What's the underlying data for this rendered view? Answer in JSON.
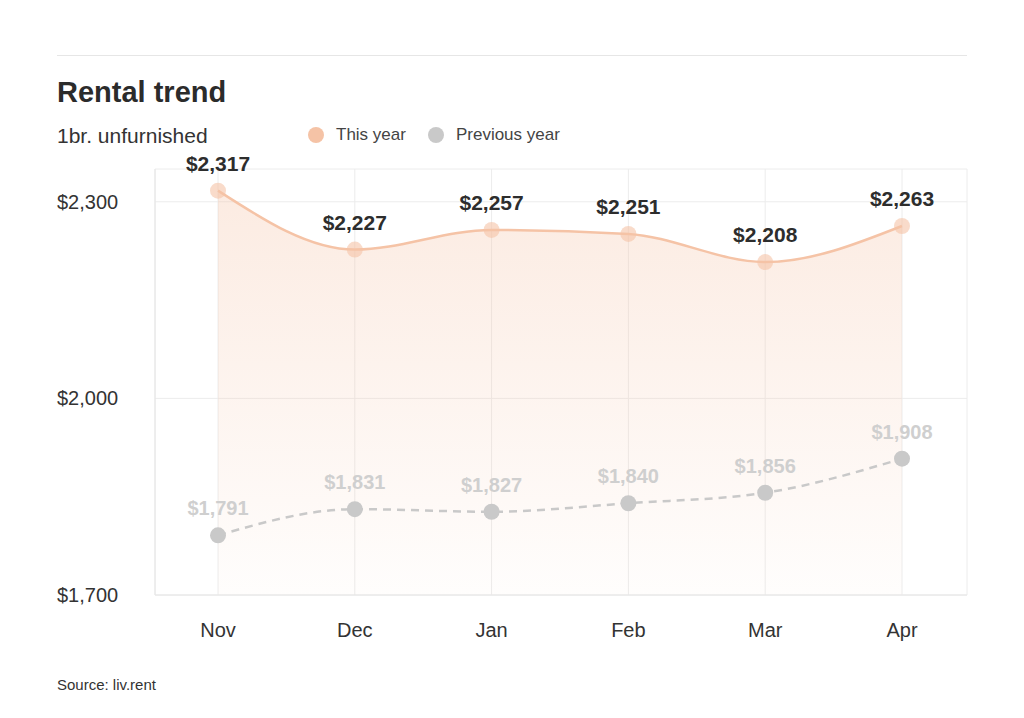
{
  "chart_data": {
    "type": "line",
    "title": "Rental trend",
    "subtitle": "1br. unfurnished",
    "source": "Source: liv.rent",
    "categories": [
      "Nov",
      "Dec",
      "Jan",
      "Feb",
      "Mar",
      "Apr"
    ],
    "series": [
      {
        "name": "This year",
        "type": "area",
        "color": "#f5c3a6",
        "marker": "circle",
        "line_style": "solid",
        "values": [
          2317,
          2227,
          2257,
          2251,
          2208,
          2263
        ],
        "value_labels": [
          "$2,317",
          "$2,227",
          "$2,257",
          "$2,251",
          "$2,208",
          "$2,263"
        ]
      },
      {
        "name": "Previous year",
        "type": "line",
        "color": "#c9c9c9",
        "marker": "circle",
        "line_style": "dashed",
        "values": [
          1791,
          1831,
          1827,
          1840,
          1856,
          1908
        ],
        "value_labels": [
          "$1,791",
          "$1,831",
          "$1,827",
          "$1,840",
          "$1,856",
          "$1,908"
        ]
      }
    ],
    "ylim": [
      1700,
      2350
    ],
    "yticks": [
      {
        "value": 1700,
        "label": "$1,700"
      },
      {
        "value": 2000,
        "label": "$2,000"
      },
      {
        "value": 2300,
        "label": "$2,300"
      }
    ],
    "grid": true,
    "legend": "top",
    "data_labels": true
  }
}
